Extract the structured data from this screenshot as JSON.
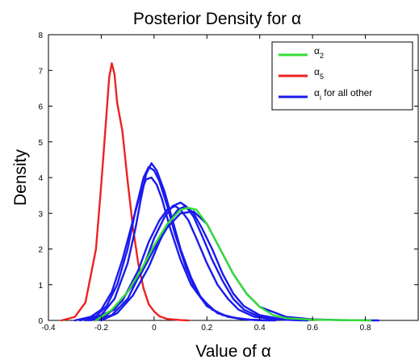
{
  "chart_data": {
    "type": "line",
    "title": "Posterior Density for α",
    "xlabel": "Value of α",
    "ylabel": "Density",
    "xlim": [
      -0.4,
      1.0
    ],
    "ylim": [
      0,
      8
    ],
    "xticks": [
      "-0.4",
      "-0.2",
      "0",
      "0.2",
      "0.4",
      "0.6",
      "0.8"
    ],
    "yticks": [
      "0",
      "1",
      "2",
      "3",
      "4",
      "5",
      "6",
      "7",
      "8"
    ],
    "grid": false,
    "legend": {
      "placement": "top-right",
      "entries": [
        {
          "base": "α",
          "sub": "2",
          "suffix": "",
          "color": "#33dd33"
        },
        {
          "base": "α",
          "sub": "5",
          "suffix": "",
          "color": "#ee2222"
        },
        {
          "base": "α",
          "sub": "i",
          "suffix": " for all other",
          "color": "#1a1aee"
        }
      ]
    },
    "series": [
      {
        "color": "#ee2222",
        "x": [
          -0.35,
          -0.3,
          -0.26,
          -0.22,
          -0.2,
          -0.18,
          -0.17,
          -0.16,
          -0.15,
          -0.14,
          -0.12,
          -0.1,
          -0.08,
          -0.06,
          -0.04,
          -0.02,
          0.0,
          0.02,
          0.05,
          0.1,
          0.13
        ],
        "y": [
          0,
          0.1,
          0.5,
          2.0,
          3.8,
          5.8,
          6.8,
          7.2,
          6.9,
          6.1,
          5.3,
          3.9,
          2.6,
          1.6,
          0.9,
          0.45,
          0.25,
          0.12,
          0.04,
          0.01,
          0
        ]
      },
      {
        "color": "#1a1aee",
        "x": [
          -0.3,
          -0.24,
          -0.2,
          -0.16,
          -0.12,
          -0.08,
          -0.05,
          -0.03,
          -0.01,
          0.01,
          0.03,
          0.06,
          0.1,
          0.14,
          0.2,
          0.26,
          0.32,
          0.38,
          0.46
        ],
        "y": [
          0,
          0.1,
          0.3,
          0.8,
          1.7,
          2.8,
          3.6,
          3.95,
          4.0,
          3.8,
          3.4,
          2.6,
          1.7,
          1.0,
          0.4,
          0.15,
          0.05,
          0.01,
          0
        ]
      },
      {
        "color": "#1a1aee",
        "x": [
          -0.28,
          -0.22,
          -0.18,
          -0.14,
          -0.1,
          -0.07,
          -0.04,
          -0.02,
          0.0,
          0.02,
          0.05,
          0.08,
          0.12,
          0.16,
          0.22,
          0.28,
          0.34,
          0.42
        ],
        "y": [
          0,
          0.12,
          0.4,
          1.0,
          2.0,
          3.1,
          4.0,
          4.3,
          4.2,
          3.9,
          3.2,
          2.4,
          1.5,
          0.8,
          0.3,
          0.1,
          0.03,
          0
        ]
      },
      {
        "color": "#1a1aee",
        "x": [
          -0.26,
          -0.2,
          -0.15,
          -0.1,
          -0.07,
          -0.05,
          -0.03,
          -0.01,
          0.01,
          0.04,
          0.07,
          0.1,
          0.14,
          0.18,
          0.24,
          0.3,
          0.36,
          0.44
        ],
        "y": [
          0,
          0.15,
          0.6,
          1.6,
          2.6,
          3.4,
          4.1,
          4.4,
          4.2,
          3.6,
          2.8,
          2.0,
          1.2,
          0.6,
          0.2,
          0.08,
          0.02,
          0
        ]
      },
      {
        "color": "#1a1aee",
        "x": [
          -0.24,
          -0.18,
          -0.12,
          -0.06,
          -0.02,
          0.02,
          0.05,
          0.08,
          0.1,
          0.13,
          0.16,
          0.2,
          0.24,
          0.28,
          0.32,
          0.38,
          0.46,
          0.56
        ],
        "y": [
          0,
          0.15,
          0.55,
          1.4,
          2.2,
          2.8,
          3.1,
          3.2,
          3.1,
          2.8,
          2.3,
          1.6,
          1.0,
          0.6,
          0.3,
          0.1,
          0.03,
          0
        ]
      },
      {
        "color": "#1a1aee",
        "x": [
          -0.22,
          -0.16,
          -0.1,
          -0.04,
          0.0,
          0.04,
          0.07,
          0.1,
          0.12,
          0.15,
          0.18,
          0.22,
          0.26,
          0.3,
          0.34,
          0.4,
          0.48,
          0.58
        ],
        "y": [
          0,
          0.15,
          0.6,
          1.5,
          2.3,
          2.9,
          3.2,
          3.3,
          3.2,
          2.9,
          2.4,
          1.7,
          1.1,
          0.6,
          0.3,
          0.1,
          0.03,
          0
        ]
      },
      {
        "color": "#1a1aee",
        "x": [
          -0.2,
          -0.14,
          -0.08,
          -0.02,
          0.02,
          0.06,
          0.09,
          0.12,
          0.15,
          0.18,
          0.22,
          0.26,
          0.3,
          0.34,
          0.4,
          0.48,
          0.58
        ],
        "y": [
          0,
          0.2,
          0.7,
          1.5,
          2.2,
          2.8,
          3.1,
          3.2,
          3.0,
          2.6,
          2.0,
          1.3,
          0.75,
          0.4,
          0.15,
          0.04,
          0
        ]
      },
      {
        "color": "#1a1aee",
        "x": [
          -0.25,
          -0.15,
          -0.05,
          0.0,
          0.05,
          0.1,
          0.15,
          0.2,
          0.25,
          0.3,
          0.35,
          0.4,
          0.5,
          0.6,
          0.7,
          0.85
        ],
        "y": [
          0,
          0.3,
          1.3,
          2.0,
          2.6,
          3.0,
          3.05,
          2.7,
          2.0,
          1.3,
          0.75,
          0.38,
          0.1,
          0.03,
          0.01,
          0
        ]
      },
      {
        "color": "#33dd33",
        "x": [
          -0.22,
          -0.16,
          -0.1,
          -0.05,
          0.0,
          0.05,
          0.1,
          0.13,
          0.16,
          0.2,
          0.25,
          0.3,
          0.35,
          0.4,
          0.45,
          0.5,
          0.6,
          0.7,
          0.82
        ],
        "y": [
          0,
          0.3,
          0.8,
          1.4,
          2.1,
          2.7,
          3.1,
          3.15,
          3.1,
          2.7,
          2.0,
          1.3,
          0.75,
          0.38,
          0.15,
          0.06,
          0.02,
          0.01,
          0
        ]
      }
    ]
  }
}
